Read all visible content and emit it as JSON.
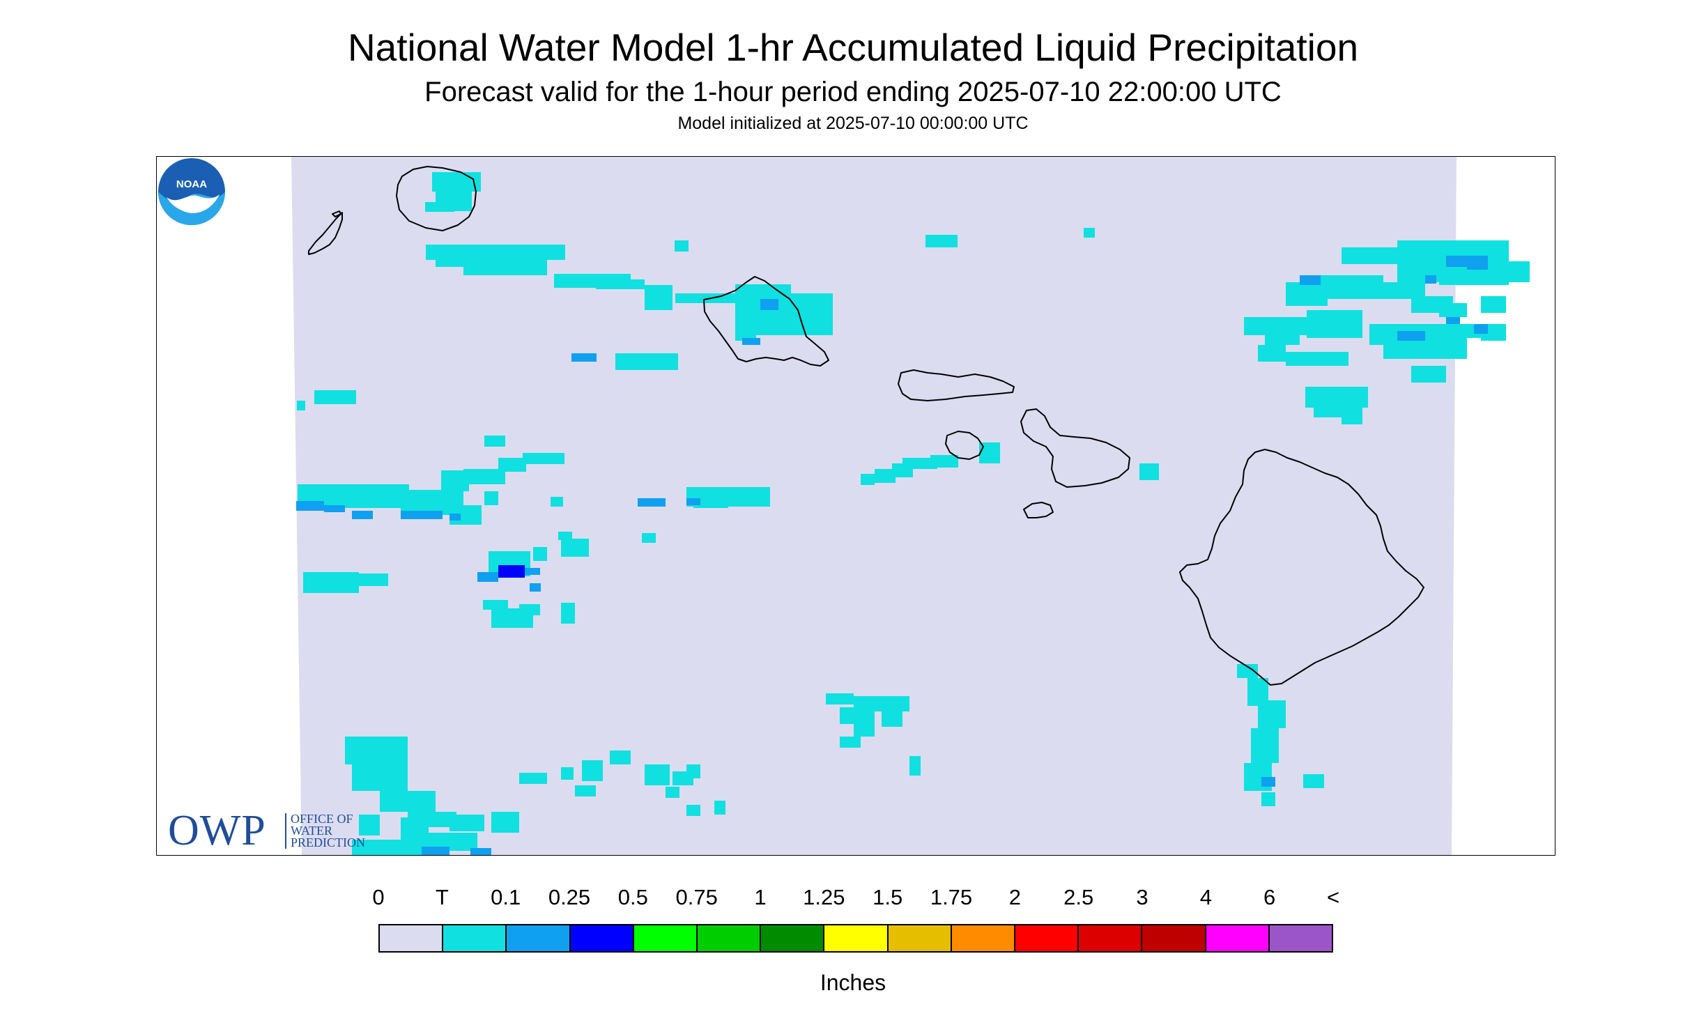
{
  "header": {
    "title": "National Water Model 1-hr Accumulated Liquid Precipitation",
    "subtitle": "Forecast valid for the 1-hour period ending 2025-07-10 22:00:00 UTC",
    "init": "Model initialized at 2025-07-10 00:00:00 UTC"
  },
  "logos": {
    "owp_big": "OWP",
    "owp_line1": "OFFICE OF",
    "owp_line2": "WATER",
    "owp_line3": "PREDICTION",
    "noaa": "NOAA"
  },
  "legend": {
    "tick_labels": [
      "0",
      "T",
      "0.1",
      "0.25",
      "0.5",
      "0.75",
      "1",
      "1.25",
      "1.5",
      "1.75",
      "2",
      "2.5",
      "3",
      "4",
      "6",
      "<"
    ],
    "colors": [
      "#dcdcf0",
      "#10e0e0",
      "#10a0f0",
      "#0000ff",
      "#00ff00",
      "#00cd00",
      "#008b00",
      "#ffff00",
      "#e6be00",
      "#ff8c00",
      "#ff0000",
      "#dc0000",
      "#be0000",
      "#ff00ff",
      "#9b55c8"
    ],
    "units": "Inches"
  },
  "map_colors": {
    "domain_fill": "#dcdcf0",
    "trace": "#10e0e0",
    "light": "#10a0f0",
    "heavy": "#0000ff",
    "coast": "#000000"
  }
}
